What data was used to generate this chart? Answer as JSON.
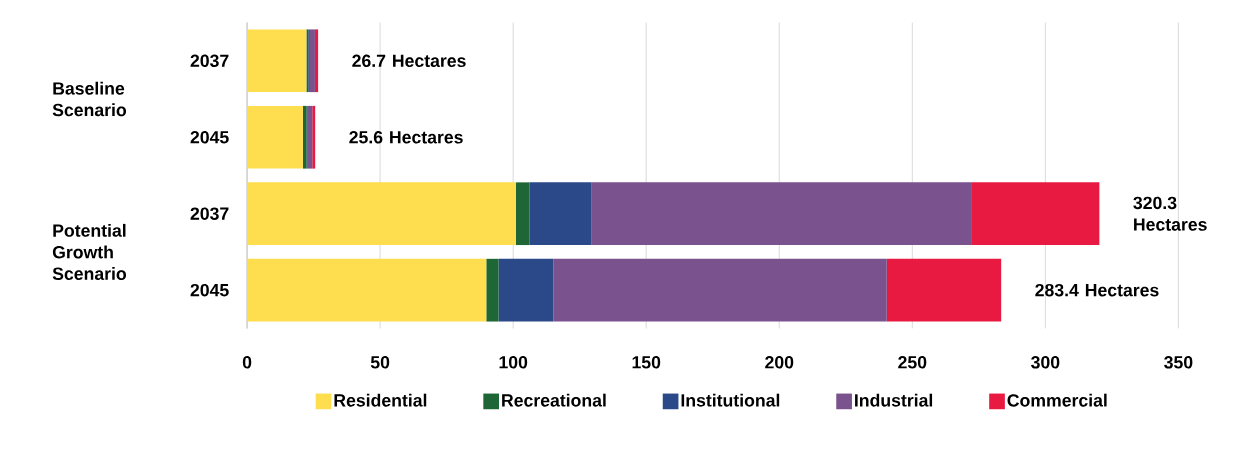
{
  "chart_data": {
    "type": "bar",
    "orientation": "horizontal",
    "stacked": true,
    "categories": [
      "2037",
      "2045",
      "2037",
      "2045"
    ],
    "series": [
      {
        "name": "Residential",
        "color": "#fedd4e",
        "values": [
          22.3,
          21.0,
          101.0,
          89.9
        ]
      },
      {
        "name": "Recreational",
        "color": "#1e6635",
        "values": [
          0.7,
          1.4,
          5.2,
          4.6
        ]
      },
      {
        "name": "Institutional",
        "color": "#2b4888",
        "values": [
          0.6,
          0.4,
          23.3,
          20.6
        ]
      },
      {
        "name": "Industrial",
        "color": "#7a528d",
        "values": [
          1.9,
          1.7,
          142.6,
          125.3
        ]
      },
      {
        "name": "Commercial",
        "color": "#e91a42",
        "values": [
          1.2,
          1.1,
          48.2,
          43.0
        ]
      }
    ],
    "totals": [
      "26.7 Hectares",
      "25.6 Hectares",
      "320.3 Hectares",
      "283.4 Hectares"
    ],
    "annotations": [
      "Baseline Scenario",
      "Potential Growth Scenario"
    ],
    "xlim": [
      0,
      350
    ],
    "xticks": [
      0,
      50,
      100,
      150,
      200,
      250,
      300,
      350
    ],
    "grid": "x",
    "legend": "bottom"
  }
}
